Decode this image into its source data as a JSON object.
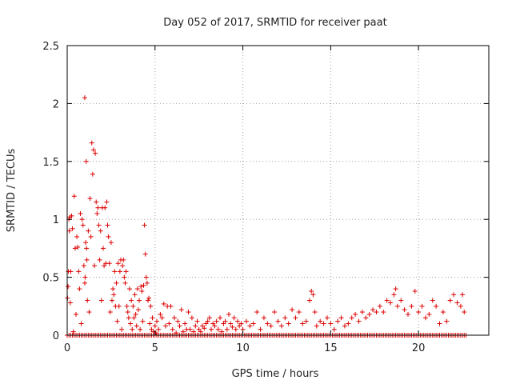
{
  "chart_data": {
    "type": "scatter",
    "title": "Day 052 of 2017, SRMTID for receiver paat",
    "xlabel": "GPS time / hours",
    "ylabel": "SRMTID / TECUs",
    "xlim": [
      0,
      24
    ],
    "ylim": [
      0,
      2.5
    ],
    "grid": true,
    "marker": "+",
    "color": "#dd0000",
    "x_ticks": [
      {
        "value": 0,
        "label": "0"
      },
      {
        "value": 5,
        "label": "5"
      },
      {
        "value": 10,
        "label": "10"
      },
      {
        "value": 15,
        "label": "15"
      },
      {
        "value": 20,
        "label": "20"
      }
    ],
    "y_ticks": [
      {
        "value": 0,
        "label": "0"
      },
      {
        "value": 0.5,
        "label": "0.5"
      },
      {
        "value": 1,
        "label": "1"
      },
      {
        "value": 1.5,
        "label": "1.5"
      },
      {
        "value": 2,
        "label": "2"
      },
      {
        "value": 2.5,
        "label": "2.5"
      }
    ],
    "baseline_range": [
      0,
      22.7
    ],
    "baseline_step": 0.1,
    "points": [
      [
        0.02,
        0.32
      ],
      [
        0.05,
        0.42
      ],
      [
        0.07,
        0.55
      ],
      [
        0.1,
        1.0
      ],
      [
        0.12,
        0.9
      ],
      [
        0.15,
        1.02
      ],
      [
        0.18,
        0.28
      ],
      [
        0.2,
        0.55
      ],
      [
        0.25,
        1.03
      ],
      [
        0.3,
        0.92
      ],
      [
        0.35,
        0.03
      ],
      [
        0.4,
        1.2
      ],
      [
        0.45,
        0.75
      ],
      [
        0.5,
        0.18
      ],
      [
        0.55,
        0.85
      ],
      [
        0.6,
        0.76
      ],
      [
        0.65,
        0.55
      ],
      [
        0.7,
        0.4
      ],
      [
        0.75,
        1.05
      ],
      [
        0.8,
        0.1
      ],
      [
        0.85,
        1.0
      ],
      [
        0.9,
        0.95
      ],
      [
        0.95,
        0.6
      ],
      [
        1.0,
        0.45
      ],
      [
        1.0,
        2.05
      ],
      [
        1.02,
        0.5
      ],
      [
        1.05,
        0.8
      ],
      [
        1.08,
        1.5
      ],
      [
        1.1,
        0.75
      ],
      [
        1.12,
        0.65
      ],
      [
        1.15,
        0.3
      ],
      [
        1.2,
        0.9
      ],
      [
        1.25,
        0.2
      ],
      [
        1.3,
        1.18
      ],
      [
        1.35,
        0.85
      ],
      [
        1.4,
        1.66
      ],
      [
        1.45,
        1.39
      ],
      [
        1.5,
        1.6
      ],
      [
        1.55,
        0.6
      ],
      [
        1.6,
        1.57
      ],
      [
        1.65,
        1.15
      ],
      [
        1.7,
        1.05
      ],
      [
        1.75,
        1.1
      ],
      [
        1.8,
        0.95
      ],
      [
        1.85,
        0.65
      ],
      [
        1.9,
        0.9
      ],
      [
        1.95,
        0.3
      ],
      [
        2.0,
        1.1
      ],
      [
        2.05,
        0.75
      ],
      [
        2.1,
        0.6
      ],
      [
        2.15,
        1.1
      ],
      [
        2.2,
        0.62
      ],
      [
        2.25,
        1.15
      ],
      [
        2.3,
        0.95
      ],
      [
        2.35,
        0.85
      ],
      [
        2.4,
        0.62
      ],
      [
        2.45,
        0.2
      ],
      [
        2.5,
        0.8
      ],
      [
        2.55,
        0.3
      ],
      [
        2.6,
        0.4
      ],
      [
        2.65,
        0.35
      ],
      [
        2.7,
        0.55
      ],
      [
        2.75,
        0.25
      ],
      [
        2.8,
        0.45
      ],
      [
        2.85,
        0.12
      ],
      [
        2.9,
        0.62
      ],
      [
        2.95,
        0.25
      ],
      [
        3.0,
        0.55
      ],
      [
        3.05,
        0.65
      ],
      [
        3.1,
        0.05
      ],
      [
        3.15,
        0.6
      ],
      [
        3.2,
        0.65
      ],
      [
        3.25,
        0.5
      ],
      [
        3.3,
        0.45
      ],
      [
        3.35,
        0.55
      ],
      [
        3.4,
        0.25
      ],
      [
        3.45,
        0.2
      ],
      [
        3.5,
        0.15
      ],
      [
        3.55,
        0.4
      ],
      [
        3.6,
        0.1
      ],
      [
        3.65,
        0.3
      ],
      [
        3.7,
        0.05
      ],
      [
        3.75,
        0.25
      ],
      [
        3.8,
        0.15
      ],
      [
        3.85,
        0.35
      ],
      [
        3.9,
        0.18
      ],
      [
        3.95,
        0.08
      ],
      [
        4.0,
        0.4
      ],
      [
        4.05,
        0.22
      ],
      [
        4.1,
        0.3
      ],
      [
        4.15,
        0.05
      ],
      [
        4.2,
        0.42
      ],
      [
        4.25,
        0.38
      ],
      [
        4.3,
        0.12
      ],
      [
        4.35,
        0.43
      ],
      [
        4.4,
        0.95
      ],
      [
        4.45,
        0.7
      ],
      [
        4.5,
        0.5
      ],
      [
        4.55,
        0.45
      ],
      [
        4.6,
        0.3
      ],
      [
        4.65,
        0.32
      ],
      [
        4.7,
        0.1
      ],
      [
        4.75,
        0.25
      ],
      [
        4.8,
        0.05
      ],
      [
        4.85,
        0.15
      ],
      [
        4.9,
        0.03
      ],
      [
        5.0,
        0.08
      ],
      [
        5.05,
        0.02
      ],
      [
        5.1,
        0.12
      ],
      [
        5.2,
        0.05
      ],
      [
        5.3,
        0.18
      ],
      [
        5.4,
        0.15
      ],
      [
        5.5,
        0.27
      ],
      [
        5.6,
        0.08
      ],
      [
        5.7,
        0.25
      ],
      [
        5.8,
        0.1
      ],
      [
        5.9,
        0.25
      ],
      [
        6.0,
        0.05
      ],
      [
        6.1,
        0.15
      ],
      [
        6.2,
        0.02
      ],
      [
        6.3,
        0.12
      ],
      [
        6.4,
        0.08
      ],
      [
        6.5,
        0.22
      ],
      [
        6.6,
        0.03
      ],
      [
        6.7,
        0.1
      ],
      [
        6.8,
        0.05
      ],
      [
        6.9,
        0.2
      ],
      [
        7.0,
        0.05
      ],
      [
        7.1,
        0.15
      ],
      [
        7.2,
        0.03
      ],
      [
        7.3,
        0.08
      ],
      [
        7.4,
        0.12
      ],
      [
        7.5,
        0.05
      ],
      [
        7.6,
        0.03
      ],
      [
        7.7,
        0.08
      ],
      [
        7.8,
        0.06
      ],
      [
        7.9,
        0.1
      ],
      [
        8.0,
        0.12
      ],
      [
        8.1,
        0.15
      ],
      [
        8.2,
        0.05
      ],
      [
        8.3,
        0.1
      ],
      [
        8.4,
        0.08
      ],
      [
        8.5,
        0.12
      ],
      [
        8.6,
        0.05
      ],
      [
        8.7,
        0.15
      ],
      [
        8.8,
        0.03
      ],
      [
        8.9,
        0.1
      ],
      [
        9.0,
        0.12
      ],
      [
        9.1,
        0.05
      ],
      [
        9.2,
        0.18
      ],
      [
        9.3,
        0.1
      ],
      [
        9.4,
        0.07
      ],
      [
        9.5,
        0.15
      ],
      [
        9.6,
        0.05
      ],
      [
        9.7,
        0.12
      ],
      [
        9.8,
        0.08
      ],
      [
        9.9,
        0.1
      ],
      [
        10.0,
        0.05
      ],
      [
        10.2,
        0.12
      ],
      [
        10.4,
        0.08
      ],
      [
        10.6,
        0.1
      ],
      [
        10.8,
        0.2
      ],
      [
        11.0,
        0.05
      ],
      [
        11.2,
        0.15
      ],
      [
        11.4,
        0.1
      ],
      [
        11.6,
        0.08
      ],
      [
        11.8,
        0.2
      ],
      [
        12.0,
        0.12
      ],
      [
        12.2,
        0.08
      ],
      [
        12.4,
        0.15
      ],
      [
        12.6,
        0.1
      ],
      [
        12.8,
        0.22
      ],
      [
        13.0,
        0.15
      ],
      [
        13.2,
        0.2
      ],
      [
        13.4,
        0.1
      ],
      [
        13.6,
        0.12
      ],
      [
        13.8,
        0.3
      ],
      [
        13.9,
        0.38
      ],
      [
        14.0,
        0.35
      ],
      [
        14.1,
        0.2
      ],
      [
        14.2,
        0.08
      ],
      [
        14.4,
        0.12
      ],
      [
        14.6,
        0.1
      ],
      [
        14.8,
        0.15
      ],
      [
        15.0,
        0.1
      ],
      [
        15.2,
        0.05
      ],
      [
        15.4,
        0.12
      ],
      [
        15.6,
        0.15
      ],
      [
        15.8,
        0.08
      ],
      [
        16.0,
        0.1
      ],
      [
        16.2,
        0.15
      ],
      [
        16.4,
        0.18
      ],
      [
        16.6,
        0.12
      ],
      [
        16.8,
        0.2
      ],
      [
        17.0,
        0.15
      ],
      [
        17.2,
        0.18
      ],
      [
        17.4,
        0.22
      ],
      [
        17.6,
        0.2
      ],
      [
        17.8,
        0.25
      ],
      [
        18.0,
        0.2
      ],
      [
        18.2,
        0.3
      ],
      [
        18.4,
        0.28
      ],
      [
        18.6,
        0.35
      ],
      [
        18.7,
        0.4
      ],
      [
        18.8,
        0.25
      ],
      [
        19.0,
        0.3
      ],
      [
        19.2,
        0.22
      ],
      [
        19.4,
        0.18
      ],
      [
        19.6,
        0.25
      ],
      [
        19.8,
        0.38
      ],
      [
        20.0,
        0.2
      ],
      [
        20.2,
        0.25
      ],
      [
        20.4,
        0.15
      ],
      [
        20.6,
        0.18
      ],
      [
        20.8,
        0.3
      ],
      [
        21.0,
        0.25
      ],
      [
        21.2,
        0.1
      ],
      [
        21.4,
        0.2
      ],
      [
        21.6,
        0.12
      ],
      [
        21.8,
        0.3
      ],
      [
        22.0,
        0.35
      ],
      [
        22.2,
        0.28
      ],
      [
        22.4,
        0.25
      ],
      [
        22.5,
        0.35
      ],
      [
        22.6,
        0.2
      ]
    ]
  }
}
